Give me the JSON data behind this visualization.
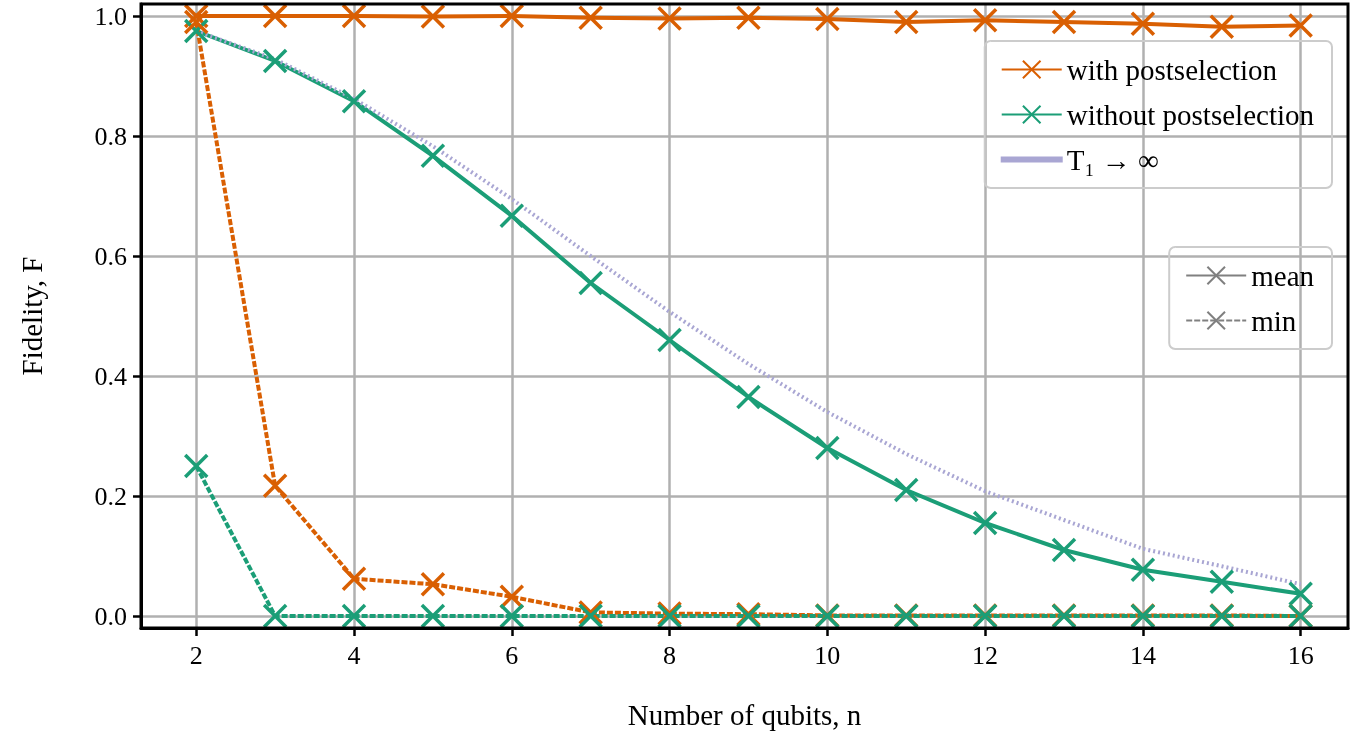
{
  "chart_data": {
    "type": "line",
    "xlabel": "Number of qubits, n",
    "ylabel": "Fidelity, F",
    "x": [
      2,
      3,
      4,
      5,
      6,
      7,
      8,
      9,
      10,
      11,
      12,
      13,
      14,
      15,
      16
    ],
    "xlim": [
      1.3,
      16.6
    ],
    "xticks": [
      2,
      4,
      6,
      8,
      10,
      12,
      14,
      16
    ],
    "ylim": [
      -0.02,
      1.02
    ],
    "yticks": [
      {
        "value": 0,
        "label": "0.0"
      },
      0.2,
      0.4,
      0.6,
      0.8,
      {
        "value": 1,
        "label": "1.0"
      }
    ],
    "grid": true,
    "legend": "top right",
    "marker": "cross",
    "line_style": "solid",
    "series": [
      {
        "name": "with postselection",
        "color": "#d95f02",
        "values": [
          1.0,
          1.0,
          1.0,
          0.999,
          1.0,
          0.997,
          0.996,
          0.997,
          0.995,
          0.99,
          0.993,
          0.99,
          0.987,
          0.982,
          0.984
        ]
      },
      {
        "name": "without postselection",
        "color": "#1b9e77",
        "values": [
          0.975,
          0.925,
          0.858,
          0.767,
          0.667,
          0.555,
          0.46,
          0.365,
          0.28,
          0.21,
          0.155,
          0.11,
          0.077,
          0.057,
          0.037
        ]
      },
      {
        "name": "T₁ → ∞",
        "color": "#a9a6d3",
        "line_style": "dotted",
        "marker": "none",
        "values": [
          0.975,
          0.928,
          0.862,
          0.783,
          0.695,
          0.6,
          0.507,
          0.42,
          0.34,
          0.27,
          0.208,
          0.16,
          0.112,
          0.083,
          0.053
        ]
      },
      {
        "color": "#d95f02",
        "line_style": "dashed",
        "values": [
          0.99,
          0.217,
          0.062,
          0.053,
          0.032,
          0.006,
          0.004,
          0.003,
          0.001,
          0.001,
          0.001,
          0.001,
          0.001,
          0.001,
          0.0
        ]
      },
      {
        "color": "#1b9e77",
        "line_style": "dashed",
        "values": [
          0.25,
          0.0,
          0.0,
          0.0,
          0.0,
          0.0,
          0.0,
          0.0,
          0.0,
          0.0,
          0.0,
          0.0,
          0.0,
          0.0,
          0.0
        ]
      },
      {
        "name": "mean",
        "color": "#808080",
        "line_style": "solid",
        "values": [
          null,
          null,
          null,
          null,
          null,
          null,
          null,
          null,
          null,
          null,
          null,
          null,
          null,
          null,
          null
        ]
      },
      {
        "name": "min",
        "color": "#808080",
        "line_style": "dashed",
        "values": [
          null,
          null,
          null,
          null,
          null,
          null,
          null,
          null,
          null,
          null,
          null,
          null,
          null,
          null,
          null
        ]
      }
    ]
  }
}
